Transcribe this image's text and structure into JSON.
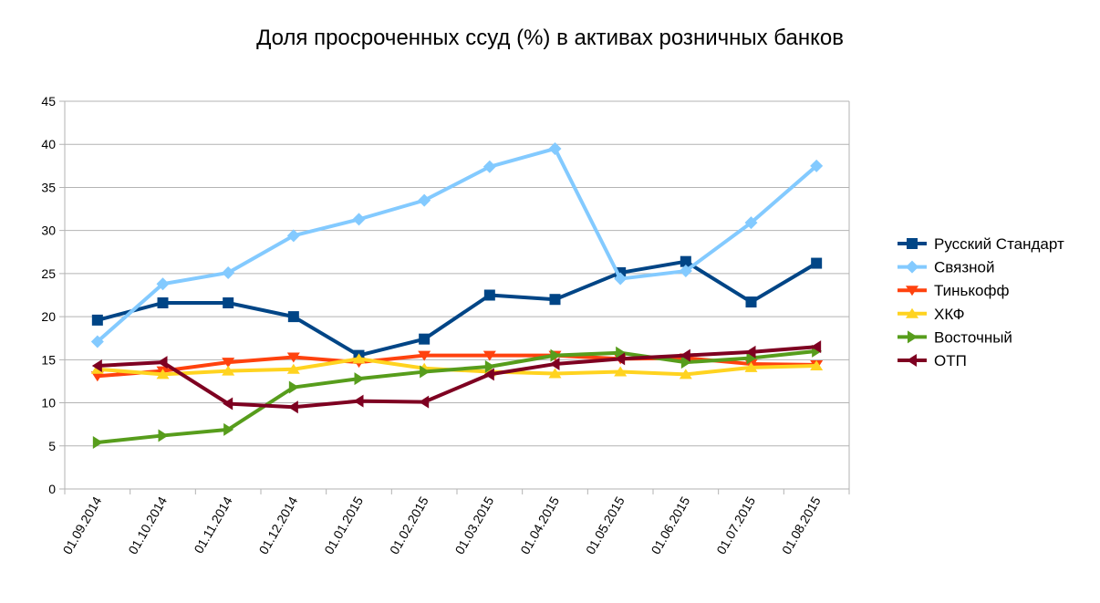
{
  "chart_data": {
    "type": "line",
    "title": "Доля просроченных ссуд (%) в активах розничных банков",
    "xlabel": "",
    "ylabel": "",
    "categories": [
      "01.09.2014",
      "01.10.2014",
      "01.11.2014",
      "01.12.2014",
      "01.01.2015",
      "01.02.2015",
      "01.03.2015",
      "01.04.2015",
      "01.05.2015",
      "01.06.2015",
      "01.07.2015",
      "01.08.2015"
    ],
    "ylim": [
      0,
      45
    ],
    "yticks": [
      0,
      5,
      10,
      15,
      20,
      25,
      30,
      35,
      40,
      45
    ],
    "grid": "horizontal",
    "legend_position": "right",
    "series": [
      {
        "name": "Русский Стандарт",
        "color": "#004586",
        "marker": "square",
        "values": [
          19.6,
          21.6,
          21.6,
          20.0,
          15.5,
          17.4,
          22.5,
          22.0,
          25.1,
          26.4,
          21.7,
          26.2
        ]
      },
      {
        "name": "Связной",
        "color": "#83CAFF",
        "marker": "diamond",
        "values": [
          17.1,
          23.8,
          25.1,
          29.4,
          31.3,
          33.5,
          37.4,
          39.5,
          24.4,
          25.3,
          30.9,
          37.5
        ]
      },
      {
        "name": "Тинькофф",
        "color": "#FF420E",
        "marker": "triangle-down",
        "values": [
          13.1,
          13.7,
          14.7,
          15.3,
          14.7,
          15.5,
          15.5,
          15.5,
          15.1,
          15.2,
          14.5,
          14.4
        ]
      },
      {
        "name": "ХКФ",
        "color": "#FFD320",
        "marker": "triangle-up",
        "values": [
          13.9,
          13.3,
          13.7,
          13.9,
          15.1,
          14.0,
          13.6,
          13.4,
          13.6,
          13.3,
          14.1,
          14.3
        ]
      },
      {
        "name": "Восточный",
        "color": "#579D1C",
        "marker": "triangle-right",
        "values": [
          5.4,
          6.2,
          6.9,
          11.8,
          12.8,
          13.6,
          14.2,
          15.5,
          15.8,
          14.7,
          15.2,
          16.0
        ]
      },
      {
        "name": "ОТП",
        "color": "#7E0021",
        "marker": "triangle-left",
        "values": [
          14.3,
          14.7,
          9.9,
          9.5,
          10.2,
          10.1,
          13.3,
          14.5,
          15.1,
          15.5,
          15.9,
          16.5
        ]
      }
    ]
  }
}
